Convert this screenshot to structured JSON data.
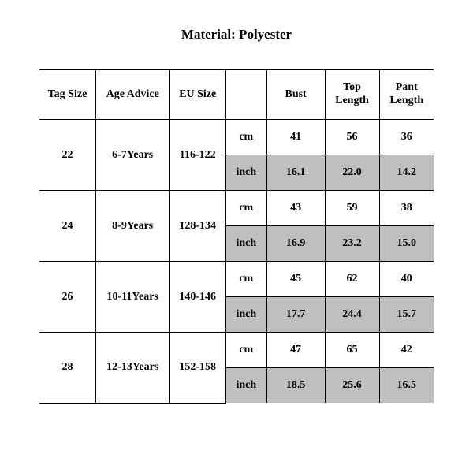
{
  "title": "Material: Polyester",
  "columns": {
    "tag": "Tag Size",
    "age": "Age Advice",
    "eu": "EU Size",
    "unit": "",
    "bust": "Bust",
    "top": "Top Length",
    "pant": "Pant Length"
  },
  "unit_cm": "cm",
  "unit_inch": "inch",
  "style": {
    "shade_color": "#bfbfbf",
    "border_color": "#000000",
    "bg_color": "#ffffff",
    "font_family": "Times New Roman",
    "title_fontsize": 17,
    "cell_fontsize": 14
  },
  "rows": [
    {
      "tag": "22",
      "age": "6-7Years",
      "eu": "116-122",
      "cm": {
        "bust": "41",
        "top": "56",
        "pant": "36"
      },
      "inch": {
        "bust": "16.1",
        "top": "22.0",
        "pant": "14.2"
      }
    },
    {
      "tag": "24",
      "age": "8-9Years",
      "eu": "128-134",
      "cm": {
        "bust": "43",
        "top": "59",
        "pant": "38"
      },
      "inch": {
        "bust": "16.9",
        "top": "23.2",
        "pant": "15.0"
      }
    },
    {
      "tag": "26",
      "age": "10-11Years",
      "eu": "140-146",
      "cm": {
        "bust": "45",
        "top": "62",
        "pant": "40"
      },
      "inch": {
        "bust": "17.7",
        "top": "24.4",
        "pant": "15.7"
      }
    },
    {
      "tag": "28",
      "age": "12-13Years",
      "eu": "152-158",
      "cm": {
        "bust": "47",
        "top": "65",
        "pant": "42"
      },
      "inch": {
        "bust": "18.5",
        "top": "25.6",
        "pant": "16.5"
      }
    }
  ]
}
